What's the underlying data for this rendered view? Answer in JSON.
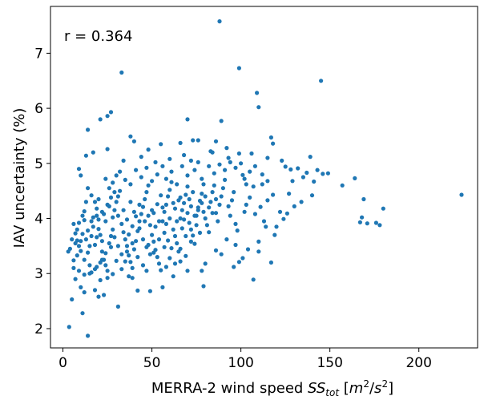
{
  "chart_data": {
    "type": "scatter",
    "title": "",
    "xlabel_main": "MERRA-2 wind speed ",
    "xlabel_var": "SS",
    "xlabel_sub": "tot",
    "xlabel_units_open": " [",
    "xlabel_units_m": "m",
    "xlabel_units_m_exp": "2",
    "xlabel_units_slash": "/",
    "xlabel_units_s": "s",
    "xlabel_units_s_exp": "2",
    "xlabel_units_close": "]",
    "ylabel": "IAV uncertainty (%)",
    "annotation": "r = 0.364",
    "xlim": [
      -7,
      233
    ],
    "ylim": [
      1.65,
      7.85
    ],
    "xticks": [
      0,
      50,
      100,
      150,
      200
    ],
    "yticks": [
      2,
      3,
      4,
      5,
      6,
      7
    ],
    "point_color": "#1f77b4",
    "grid": false,
    "points": [
      [
        3.5,
        2.03
      ],
      [
        14,
        1.87
      ],
      [
        11,
        2.28
      ],
      [
        5,
        2.53
      ],
      [
        31,
        2.4
      ],
      [
        12,
        2.66
      ],
      [
        20,
        2.58
      ],
      [
        23,
        2.61
      ],
      [
        18,
        2.7
      ],
      [
        7,
        2.9
      ],
      [
        10,
        2.75
      ],
      [
        21,
        2.88
      ],
      [
        25,
        2.92
      ],
      [
        15,
        3.0
      ],
      [
        28,
        2.99
      ],
      [
        37,
        2.95
      ],
      [
        42,
        2.69
      ],
      [
        49,
        2.68
      ],
      [
        56,
        2.75
      ],
      [
        79,
        2.77
      ],
      [
        107,
        2.89
      ],
      [
        117,
        3.2
      ],
      [
        62,
        2.95
      ],
      [
        70,
        3.05
      ],
      [
        80,
        3.18
      ],
      [
        89,
        3.35
      ],
      [
        99,
        3.21
      ],
      [
        104,
        3.44
      ],
      [
        92,
        3.62
      ],
      [
        97,
        3.52
      ],
      [
        110,
        3.58
      ],
      [
        120,
        3.85
      ],
      [
        124,
        3.99
      ],
      [
        130,
        4.22
      ],
      [
        134,
        4.3
      ],
      [
        140,
        4.42
      ],
      [
        135,
        4.75
      ],
      [
        143,
        4.88
      ],
      [
        146,
        4.81
      ],
      [
        149,
        4.82
      ],
      [
        157,
        4.6
      ],
      [
        164,
        4.73
      ],
      [
        168,
        4.02
      ],
      [
        167,
        3.93
      ],
      [
        171,
        3.91
      ],
      [
        176,
        3.92
      ],
      [
        169,
        4.35
      ],
      [
        178,
        3.88
      ],
      [
        180,
        4.18
      ],
      [
        224,
        4.43
      ],
      [
        145,
        6.5
      ],
      [
        99,
        6.73
      ],
      [
        109,
        6.28
      ],
      [
        110,
        6.02
      ],
      [
        88,
        7.58
      ],
      [
        89,
        5.77
      ],
      [
        117,
        5.47
      ],
      [
        118,
        5.36
      ],
      [
        99,
        5.18
      ],
      [
        93,
        5.1
      ],
      [
        33,
        6.65
      ],
      [
        25,
        5.86
      ],
      [
        27,
        5.93
      ],
      [
        21,
        5.8
      ],
      [
        14,
        5.61
      ],
      [
        17,
        5.2
      ],
      [
        13,
        5.14
      ],
      [
        9,
        4.9
      ],
      [
        10,
        4.78
      ],
      [
        24,
        4.72
      ],
      [
        25,
        5.26
      ],
      [
        38,
        5.49
      ],
      [
        40,
        5.4
      ],
      [
        48,
        5.25
      ],
      [
        55,
        5.35
      ],
      [
        66,
        5.37
      ],
      [
        70,
        5.8
      ],
      [
        73,
        5.42
      ],
      [
        76,
        5.42
      ],
      [
        72,
        5.05
      ],
      [
        84,
        5.2
      ],
      [
        86,
        5.4
      ],
      [
        100,
        5.0
      ],
      [
        101,
        4.79
      ],
      [
        106,
        5.18
      ],
      [
        123,
        5.05
      ],
      [
        125,
        4.94
      ],
      [
        128,
        4.89
      ],
      [
        132,
        4.91
      ],
      [
        139,
        5.12
      ],
      [
        137,
        4.83
      ],
      [
        141,
        4.67
      ],
      [
        129,
        4.68
      ],
      [
        107,
        4.58
      ],
      [
        112,
        4.62
      ],
      [
        115,
        4.33
      ],
      [
        122,
        4.12
      ],
      [
        126,
        4.09
      ],
      [
        127,
        4.45
      ],
      [
        118,
        4.43
      ],
      [
        6,
        3.24
      ],
      [
        8,
        3.33
      ],
      [
        9,
        3.5
      ],
      [
        10,
        3.59
      ],
      [
        11,
        3.72
      ],
      [
        12,
        3.97
      ],
      [
        12,
        4.13
      ],
      [
        13,
        4.3
      ],
      [
        14,
        4.55
      ],
      [
        16,
        4.42
      ],
      [
        18,
        4.3
      ],
      [
        19,
        4.05
      ],
      [
        20,
        3.81
      ],
      [
        21,
        3.7
      ],
      [
        22,
        3.59
      ],
      [
        22,
        3.4
      ],
      [
        23,
        3.25
      ],
      [
        24,
        3.15
      ],
      [
        25,
        3.05
      ],
      [
        26,
        3.55
      ],
      [
        27,
        3.68
      ],
      [
        28,
        3.8
      ],
      [
        28,
        4.02
      ],
      [
        29,
        4.15
      ],
      [
        30,
        4.3
      ],
      [
        31,
        4.4
      ],
      [
        32,
        4.5
      ],
      [
        33,
        3.9
      ],
      [
        34,
        3.75
      ],
      [
        35,
        3.62
      ],
      [
        36,
        3.5
      ],
      [
        37,
        3.33
      ],
      [
        38,
        3.21
      ],
      [
        39,
        3.1
      ],
      [
        40,
        3.44
      ],
      [
        41,
        3.59
      ],
      [
        42,
        3.77
      ],
      [
        43,
        3.95
      ],
      [
        44,
        4.08
      ],
      [
        45,
        4.21
      ],
      [
        46,
        4.35
      ],
      [
        47,
        4.48
      ],
      [
        48,
        4.6
      ],
      [
        49,
        3.88
      ],
      [
        50,
        3.7
      ],
      [
        51,
        3.58
      ],
      [
        52,
        3.43
      ],
      [
        53,
        3.3
      ],
      [
        54,
        3.18
      ],
      [
        55,
        3.06
      ],
      [
        56,
        3.95
      ],
      [
        57,
        4.12
      ],
      [
        58,
        4.25
      ],
      [
        59,
        4.4
      ],
      [
        60,
        4.52
      ],
      [
        61,
        4.66
      ],
      [
        62,
        3.8
      ],
      [
        63,
        3.68
      ],
      [
        64,
        3.55
      ],
      [
        65,
        3.4
      ],
      [
        66,
        4.0
      ],
      [
        67,
        4.15
      ],
      [
        68,
        4.28
      ],
      [
        69,
        4.43
      ],
      [
        70,
        4.58
      ],
      [
        71,
        3.92
      ],
      [
        72,
        3.8
      ],
      [
        73,
        3.69
      ],
      [
        74,
        3.54
      ],
      [
        75,
        4.05
      ],
      [
        76,
        4.2
      ],
      [
        77,
        4.32
      ],
      [
        78,
        4.45
      ],
      [
        79,
        4.62
      ],
      [
        80,
        4.0
      ],
      [
        81,
        3.88
      ],
      [
        82,
        3.75
      ],
      [
        83,
        4.3
      ],
      [
        84,
        4.48
      ],
      [
        85,
        4.6
      ],
      [
        86,
        4.1
      ],
      [
        87,
        3.95
      ],
      [
        88,
        4.25
      ],
      [
        89,
        4.4
      ],
      [
        90,
        4.55
      ],
      [
        91,
        4.7
      ],
      [
        93,
        4.22
      ],
      [
        94,
        4.05
      ],
      [
        95,
        4.33
      ],
      [
        96,
        4.48
      ],
      [
        97,
        3.9
      ],
      [
        98,
        3.78
      ],
      [
        102,
        4.12
      ],
      [
        103,
        4.25
      ],
      [
        105,
        4.38
      ],
      [
        108,
        4.08
      ],
      [
        111,
        4.21
      ],
      [
        113,
        3.95
      ],
      [
        114,
        3.85
      ],
      [
        119,
        3.7
      ],
      [
        8,
        3.6
      ],
      [
        9,
        3.92
      ],
      [
        10,
        3.41
      ],
      [
        12,
        3.25
      ],
      [
        14,
        3.38
      ],
      [
        15,
        3.5
      ],
      [
        16,
        3.68
      ],
      [
        17,
        3.85
      ],
      [
        17,
        4.02
      ],
      [
        19,
        4.18
      ],
      [
        20,
        4.35
      ],
      [
        23,
        4.08
      ],
      [
        24,
        3.95
      ],
      [
        26,
        4.22
      ],
      [
        29,
        3.66
      ],
      [
        31,
        3.5
      ],
      [
        33,
        3.35
      ],
      [
        35,
        3.22
      ],
      [
        37,
        3.71
      ],
      [
        39,
        3.86
      ],
      [
        41,
        4.04
      ],
      [
        43,
        4.25
      ],
      [
        45,
        3.62
      ],
      [
        47,
        3.48
      ],
      [
        49,
        3.35
      ],
      [
        51,
        4.1
      ],
      [
        53,
        4.26
      ],
      [
        55,
        4.42
      ],
      [
        57,
        3.74
      ],
      [
        59,
        3.6
      ],
      [
        61,
        3.46
      ],
      [
        63,
        4.18
      ],
      [
        65,
        4.33
      ],
      [
        67,
        3.82
      ],
      [
        69,
        3.68
      ],
      [
        71,
        4.35
      ],
      [
        73,
        4.48
      ],
      [
        75,
        3.88
      ],
      [
        77,
        3.74
      ],
      [
        79,
        4.12
      ],
      [
        15,
        3.15
      ],
      [
        18,
        3.08
      ],
      [
        21,
        3.2
      ],
      [
        24,
        3.37
      ],
      [
        27,
        3.48
      ],
      [
        30,
        3.23
      ],
      [
        33,
        3.08
      ],
      [
        36,
        3.4
      ],
      [
        39,
        3.55
      ],
      [
        42,
        3.3
      ],
      [
        45,
        3.15
      ],
      [
        48,
        3.52
      ],
      [
        51,
        3.38
      ],
      [
        54,
        3.62
      ],
      [
        57,
        3.48
      ],
      [
        60,
        3.28
      ],
      [
        63,
        3.18
      ],
      [
        66,
        3.45
      ],
      [
        69,
        3.32
      ],
      [
        72,
        3.58
      ],
      [
        26,
        4.55
      ],
      [
        28,
        4.65
      ],
      [
        30,
        4.78
      ],
      [
        32,
        4.85
      ],
      [
        35,
        4.7
      ],
      [
        38,
        4.62
      ],
      [
        41,
        4.88
      ],
      [
        44,
        4.75
      ],
      [
        47,
        4.92
      ],
      [
        50,
        4.68
      ],
      [
        53,
        4.8
      ],
      [
        56,
        4.95
      ],
      [
        58,
        4.72
      ],
      [
        61,
        4.85
      ],
      [
        64,
        4.62
      ],
      [
        67,
        4.95
      ],
      [
        70,
        4.78
      ],
      [
        74,
        4.88
      ],
      [
        78,
        4.72
      ],
      [
        82,
        4.95
      ],
      [
        85,
        4.82
      ],
      [
        88,
        4.98
      ],
      [
        91,
        4.88
      ],
      [
        94,
        5.02
      ],
      [
        97,
        4.92
      ],
      [
        102,
        4.72
      ],
      [
        105,
        4.85
      ],
      [
        108,
        4.95
      ],
      [
        112,
        4.8
      ],
      [
        115,
        4.68
      ],
      [
        34,
        5.05
      ],
      [
        44,
        5.12
      ],
      [
        52,
        5.02
      ],
      [
        60,
        5.08
      ],
      [
        68,
        5.15
      ],
      [
        76,
        5.02
      ],
      [
        83,
        5.22
      ],
      [
        92,
        5.28
      ],
      [
        103,
        4.62
      ],
      [
        115,
        5.1
      ],
      [
        7,
        3.55
      ],
      [
        8,
        3.8
      ],
      [
        11,
        4.05
      ],
      [
        13,
        3.62
      ],
      [
        14,
        3.78
      ],
      [
        16,
        3.95
      ],
      [
        18,
        3.52
      ],
      [
        19,
        3.66
      ],
      [
        20,
        3.98
      ],
      [
        22,
        4.12
      ],
      [
        25,
        4.25
      ],
      [
        27,
        4.38
      ],
      [
        29,
        4.48
      ],
      [
        31,
        4.05
      ],
      [
        34,
        4.15
      ],
      [
        36,
        3.98
      ],
      [
        38,
        4.3
      ],
      [
        40,
        4.12
      ],
      [
        43,
        3.82
      ],
      [
        46,
        3.95
      ],
      [
        48,
        4.05
      ],
      [
        50,
        4.15
      ],
      [
        52,
        3.85
      ],
      [
        54,
        3.95
      ],
      [
        56,
        4.2
      ],
      [
        58,
        3.9
      ],
      [
        60,
        4.0
      ],
      [
        62,
        4.28
      ],
      [
        64,
        3.95
      ],
      [
        66,
        4.38
      ],
      [
        68,
        3.98
      ],
      [
        70,
        4.1
      ],
      [
        72,
        4.22
      ],
      [
        74,
        4.05
      ],
      [
        76,
        4.15
      ],
      [
        78,
        4.28
      ],
      [
        80,
        4.4
      ],
      [
        82,
        4.2
      ],
      [
        84,
        4.1
      ],
      [
        86,
        4.35
      ],
      [
        6,
        3.1
      ],
      [
        9,
        3.05
      ],
      [
        12,
        2.98
      ],
      [
        16,
        3.02
      ],
      [
        19,
        3.12
      ],
      [
        22,
        3.25
      ],
      [
        39,
        2.92
      ],
      [
        47,
        3.05
      ],
      [
        58,
        3.12
      ],
      [
        66,
        3.22
      ],
      [
        78,
        3.05
      ],
      [
        86,
        3.42
      ],
      [
        96,
        3.12
      ],
      [
        101,
        3.28
      ],
      [
        110,
        3.4
      ],
      [
        5,
        3.62
      ],
      [
        4,
        3.45
      ],
      [
        3,
        3.4
      ],
      [
        6,
        3.9
      ],
      [
        7,
        3.73
      ]
    ]
  }
}
